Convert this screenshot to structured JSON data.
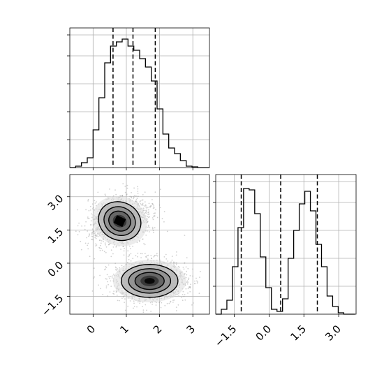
{
  "chart_data": {
    "type": "corner",
    "grid": true,
    "quantiles": [
      0.16,
      0.5,
      0.84
    ],
    "panels": [
      {
        "id": "hist_x",
        "type": "histogram-step",
        "xlim": [
          -0.7,
          3.5
        ],
        "ylim": [
          0,
          1.0
        ],
        "bin_edges": [
          -0.7,
          -0.525,
          -0.35,
          -0.175,
          0.0,
          0.175,
          0.35,
          0.525,
          0.7,
          0.875,
          1.05,
          1.225,
          1.4,
          1.575,
          1.75,
          1.925,
          2.1,
          2.275,
          2.45,
          2.625,
          2.8,
          2.975,
          3.15,
          3.325,
          3.5
        ],
        "counts": [
          0.0,
          0.01,
          0.035,
          0.07,
          0.27,
          0.5,
          0.75,
          0.87,
          0.9,
          0.92,
          0.87,
          0.84,
          0.78,
          0.72,
          0.62,
          0.42,
          0.24,
          0.14,
          0.1,
          0.05,
          0.01,
          0.005,
          0.0,
          0.0
        ],
        "quantile_values": [
          0.6,
          1.2,
          1.87
        ],
        "y_ticks": [
          0.2,
          0.4,
          0.6,
          0.8,
          0.95
        ],
        "x_ticks": [
          0,
          1,
          2,
          3
        ]
      },
      {
        "id": "joint_xy",
        "type": "2d-histogram-contour",
        "xlim": [
          -0.7,
          3.5
        ],
        "ylim": [
          -2.3,
          4.0
        ],
        "x_ticks": [
          0,
          1,
          2,
          3
        ],
        "y_ticks": [
          -1.5,
          0.0,
          1.5,
          3.0
        ],
        "x_tick_labels": [
          "0",
          "1",
          "2",
          "3"
        ],
        "y_tick_labels": [
          "−1.5",
          "0.0",
          "1.5",
          "3.0"
        ],
        "clusters": [
          {
            "center": [
              0.8,
              1.9
            ],
            "sx": 0.42,
            "sy": 0.55,
            "rotation": -25
          },
          {
            "center": [
              1.7,
              -0.8
            ],
            "sx": 0.55,
            "sy": 0.48,
            "rotation": 0
          }
        ]
      },
      {
        "id": "hist_y",
        "type": "histogram-step",
        "xlim": [
          -2.3,
          3.75
        ],
        "ylim": [
          0,
          1.0
        ],
        "bin_edges": [
          -2.3,
          -2.06,
          -1.82,
          -1.58,
          -1.34,
          -1.1,
          -0.86,
          -0.62,
          -0.38,
          -0.14,
          0.1,
          0.34,
          0.58,
          0.82,
          1.06,
          1.3,
          1.54,
          1.78,
          2.02,
          2.26,
          2.5,
          2.74,
          2.98,
          3.22,
          3.46,
          3.7
        ],
        "counts": [
          0.0,
          0.035,
          0.1,
          0.34,
          0.62,
          0.9,
          0.89,
          0.72,
          0.41,
          0.19,
          0.035,
          0.02,
          0.11,
          0.4,
          0.6,
          0.79,
          0.88,
          0.74,
          0.5,
          0.34,
          0.13,
          0.055,
          0.01,
          0.0,
          0.0
        ],
        "quantile_values": [
          -1.2,
          0.5,
          2.08
        ],
        "x_ticks": [
          -1.5,
          0.0,
          1.5,
          3.0
        ],
        "x_tick_labels": [
          "−1.5",
          "0.0",
          "1.5",
          "3.0"
        ],
        "y_ticks": [
          0.2,
          0.4,
          0.6,
          0.8,
          0.95
        ]
      }
    ]
  },
  "colors": {
    "line": "#000000",
    "grid": "#b0b0b0",
    "scatter": "#9a9a9a",
    "density_levels": [
      "#dcdcdc",
      "#b4b4b4",
      "#8c8c8c",
      "#5f5f5f",
      "#303030",
      "#000000"
    ]
  }
}
